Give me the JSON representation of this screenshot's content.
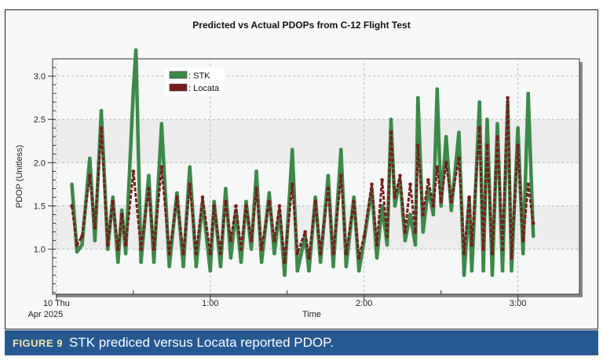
{
  "chart_data": {
    "type": "scatter",
    "title": "Predicted vs Actual PDOPs from C-12 Flight Test",
    "xlabel": "Time",
    "ylabel": "PDOP (Unitless)",
    "x_units": "minutes after 10 Thu Apr 2025 00:00",
    "xlim": [
      -1.5,
      204
    ],
    "ylim": [
      0.48,
      3.2
    ],
    "x_ticks": [
      {
        "value": 0,
        "label": "10 Thu",
        "sublabel": "Apr 2025"
      },
      {
        "value": 60,
        "label": "1:00"
      },
      {
        "value": 120,
        "label": "2:00"
      },
      {
        "value": 180,
        "label": "3:00"
      }
    ],
    "y_ticks": [
      {
        "value": 1.0,
        "label": "1.0"
      },
      {
        "value": 1.5,
        "label": "1.5"
      },
      {
        "value": 2.0,
        "label": "2.0"
      },
      {
        "value": 2.5,
        "label": "2.5"
      },
      {
        "value": 3.0,
        "label": "3.0"
      }
    ],
    "grid": true,
    "legend_position": "top-left",
    "series": [
      {
        "name": ": STK",
        "color": "#3a8a48",
        "points": [
          [
            6,
            1.75
          ],
          [
            8,
            0.97
          ],
          [
            10,
            1.05
          ],
          [
            13,
            2.05
          ],
          [
            15,
            1.1
          ],
          [
            17.5,
            2.6
          ],
          [
            20,
            1.0
          ],
          [
            22,
            1.6
          ],
          [
            24,
            0.85
          ],
          [
            25.5,
            1.45
          ],
          [
            27,
            0.95
          ],
          [
            30,
            2.85
          ],
          [
            31,
            3.3
          ],
          [
            33,
            0.85
          ],
          [
            36,
            1.85
          ],
          [
            38,
            0.85
          ],
          [
            41,
            2.45
          ],
          [
            44,
            0.8
          ],
          [
            47,
            1.65
          ],
          [
            49.5,
            0.8
          ],
          [
            52,
            1.95
          ],
          [
            54.5,
            0.8
          ],
          [
            57,
            1.55
          ],
          [
            60,
            0.75
          ],
          [
            61.5,
            1.55
          ],
          [
            64,
            0.8
          ],
          [
            66,
            1.7
          ],
          [
            68,
            0.9
          ],
          [
            70,
            1.45
          ],
          [
            72,
            0.85
          ],
          [
            74,
            1.55
          ],
          [
            76,
            1.0
          ],
          [
            78,
            1.9
          ],
          [
            80,
            0.85
          ],
          [
            83,
            1.65
          ],
          [
            85,
            0.95
          ],
          [
            87,
            1.45
          ],
          [
            89,
            0.7
          ],
          [
            92,
            2.15
          ],
          [
            94,
            0.75
          ],
          [
            97,
            1.15
          ],
          [
            98.5,
            0.75
          ],
          [
            101,
            1.6
          ],
          [
            103,
            0.85
          ],
          [
            106,
            1.85
          ],
          [
            108,
            0.8
          ],
          [
            111,
            2.15
          ],
          [
            113,
            0.8
          ],
          [
            116,
            1.6
          ],
          [
            118,
            0.75
          ],
          [
            120,
            1.1
          ],
          [
            123,
            1.7
          ],
          [
            125,
            0.9
          ],
          [
            127,
            1.5
          ],
          [
            129,
            1.05
          ],
          [
            130.5,
            2.5
          ],
          [
            132,
            1.5
          ],
          [
            134,
            1.8
          ],
          [
            136,
            1.1
          ],
          [
            138,
            1.4
          ],
          [
            140,
            1.05
          ],
          [
            141,
            2.75
          ],
          [
            143,
            1.2
          ],
          [
            145,
            1.7
          ],
          [
            147,
            1.4
          ],
          [
            148.5,
            2.85
          ],
          [
            150,
            1.5
          ],
          [
            152,
            2.3
          ],
          [
            154,
            1.45
          ],
          [
            157,
            2.35
          ],
          [
            159,
            0.7
          ],
          [
            161,
            1.6
          ],
          [
            162,
            0.75
          ],
          [
            165,
            2.7
          ],
          [
            166.5,
            0.75
          ],
          [
            168,
            2.5
          ],
          [
            170,
            0.7
          ],
          [
            172,
            2.45
          ],
          [
            174,
            0.75
          ],
          [
            176,
            2.7
          ],
          [
            177.5,
            0.75
          ],
          [
            180,
            2.4
          ],
          [
            182,
            0.95
          ],
          [
            184,
            2.8
          ],
          [
            186,
            1.15
          ]
        ]
      },
      {
        "name": ": Locata",
        "color": "#7a1c1c",
        "points": [
          [
            6,
            1.5
          ],
          [
            8,
            1.05
          ],
          [
            10,
            1.15
          ],
          [
            13,
            1.85
          ],
          [
            15,
            1.25
          ],
          [
            17.5,
            2.4
          ],
          [
            20,
            1.05
          ],
          [
            22,
            1.55
          ],
          [
            24,
            1.0
          ],
          [
            25.5,
            1.4
          ],
          [
            27,
            1.05
          ],
          [
            30,
            1.9
          ],
          [
            33,
            1.0
          ],
          [
            36,
            1.7
          ],
          [
            38,
            1.0
          ],
          [
            41,
            1.95
          ],
          [
            44,
            0.95
          ],
          [
            47,
            1.6
          ],
          [
            49.5,
            0.95
          ],
          [
            52,
            1.75
          ],
          [
            54.5,
            0.95
          ],
          [
            57,
            1.6
          ],
          [
            60,
            0.95
          ],
          [
            61.5,
            1.5
          ],
          [
            64,
            0.95
          ],
          [
            66,
            1.55
          ],
          [
            68,
            1.1
          ],
          [
            70,
            1.5
          ],
          [
            72,
            1.0
          ],
          [
            74,
            1.5
          ],
          [
            76,
            1.1
          ],
          [
            78,
            1.7
          ],
          [
            80,
            1.0
          ],
          [
            83,
            1.55
          ],
          [
            85,
            1.1
          ],
          [
            87,
            1.5
          ],
          [
            89,
            0.85
          ],
          [
            92,
            1.75
          ],
          [
            94,
            0.95
          ],
          [
            97,
            1.2
          ],
          [
            98.5,
            0.9
          ],
          [
            101,
            1.55
          ],
          [
            103,
            0.95
          ],
          [
            106,
            1.7
          ],
          [
            108,
            0.95
          ],
          [
            111,
            1.85
          ],
          [
            113,
            0.95
          ],
          [
            116,
            1.55
          ],
          [
            118,
            0.9
          ],
          [
            120,
            1.15
          ],
          [
            123,
            1.75
          ],
          [
            125,
            1.05
          ],
          [
            127,
            1.8
          ],
          [
            129,
            1.15
          ],
          [
            130.5,
            2.35
          ],
          [
            132,
            1.6
          ],
          [
            134,
            1.85
          ],
          [
            136,
            1.2
          ],
          [
            138,
            1.75
          ],
          [
            140,
            1.2
          ],
          [
            141,
            2.2
          ],
          [
            143,
            1.4
          ],
          [
            145,
            1.8
          ],
          [
            147,
            1.5
          ],
          [
            148.5,
            1.95
          ],
          [
            150,
            1.55
          ],
          [
            152,
            2.0
          ],
          [
            154,
            1.55
          ],
          [
            157,
            2.05
          ],
          [
            159,
            0.95
          ],
          [
            161,
            1.6
          ],
          [
            162,
            1.05
          ],
          [
            165,
            2.4
          ],
          [
            166.5,
            1.0
          ],
          [
            168,
            2.2
          ],
          [
            170,
            0.95
          ],
          [
            172,
            2.3
          ],
          [
            174,
            1.0
          ],
          [
            176,
            2.75
          ],
          [
            177.5,
            0.9
          ],
          [
            180,
            2.2
          ],
          [
            182,
            1.1
          ],
          [
            184,
            1.75
          ],
          [
            186,
            1.3
          ]
        ]
      }
    ]
  },
  "caption": {
    "label": "FIGURE 9",
    "text": "STK prediced versus Locata reported PDOP."
  }
}
